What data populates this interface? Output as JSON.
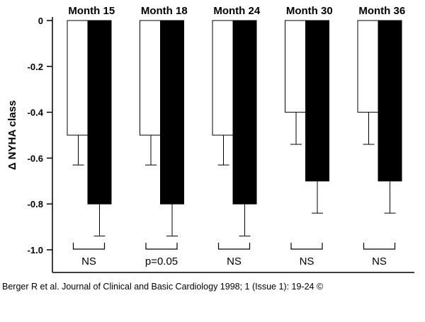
{
  "chart_data": {
    "type": "bar",
    "ylabel": "Δ NYHA class",
    "ylim": [
      -1.1,
      0
    ],
    "yticks": [
      0,
      -0.2,
      -0.4,
      -0.6,
      -0.8,
      -1.0
    ],
    "ytick_labels": [
      "0",
      "-0.2",
      "-0.4",
      "-0.6",
      "-0.8",
      "-1.0"
    ],
    "categories": [
      "Month 15",
      "Month 18",
      "Month 24",
      "Month 30",
      "Month 36"
    ],
    "series": [
      {
        "fill": "#ffffff",
        "values": [
          -0.5,
          -0.5,
          -0.5,
          -0.4,
          -0.4
        ],
        "errors": [
          0.13,
          0.13,
          0.13,
          0.14,
          0.14
        ]
      },
      {
        "fill": "#000000",
        "values": [
          -0.8,
          -0.8,
          -0.8,
          -0.7,
          -0.7
        ],
        "errors": [
          0.14,
          0.14,
          0.14,
          0.14,
          0.14
        ]
      }
    ],
    "significance": [
      "NS",
      "p=0.05",
      "NS",
      "NS",
      "NS"
    ]
  },
  "citation": "Berger R et al. Journal of Clinical and Basic Cardiology 1998; 1 (Issue 1): 19-24 ©"
}
